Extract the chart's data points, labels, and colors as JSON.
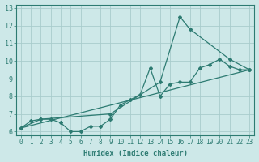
{
  "xlabel": "Humidex (Indice chaleur)",
  "ylabel": "",
  "bg_color": "#cde8e8",
  "line_color": "#2d7b72",
  "grid_color": "#a8cccc",
  "xlim": [
    -0.5,
    23.5
  ],
  "ylim": [
    5.8,
    13.2
  ],
  "xticks": [
    0,
    1,
    2,
    3,
    4,
    5,
    6,
    7,
    8,
    9,
    10,
    11,
    12,
    13,
    14,
    15,
    16,
    17,
    18,
    19,
    20,
    21,
    22,
    23
  ],
  "yticks": [
    6,
    7,
    8,
    9,
    10,
    11,
    12,
    13
  ],
  "series1_x": [
    0,
    1,
    2,
    3,
    4,
    5,
    6,
    7,
    8,
    9,
    10,
    11,
    12,
    13,
    14,
    15,
    16,
    17,
    18,
    19,
    20,
    21,
    22,
    23
  ],
  "series1_y": [
    6.2,
    6.6,
    6.7,
    6.7,
    6.5,
    6.0,
    6.0,
    6.3,
    6.3,
    6.7,
    7.5,
    7.8,
    8.1,
    9.6,
    8.0,
    8.7,
    8.8,
    8.8,
    9.6,
    9.8,
    10.1,
    9.7,
    9.5,
    9.5
  ],
  "series2_x": [
    0,
    2,
    9,
    14,
    16,
    17,
    21,
    23
  ],
  "series2_y": [
    6.2,
    6.7,
    7.0,
    8.8,
    12.5,
    11.8,
    10.1,
    9.5
  ],
  "series3_x": [
    0,
    23
  ],
  "series3_y": [
    6.2,
    9.5
  ]
}
